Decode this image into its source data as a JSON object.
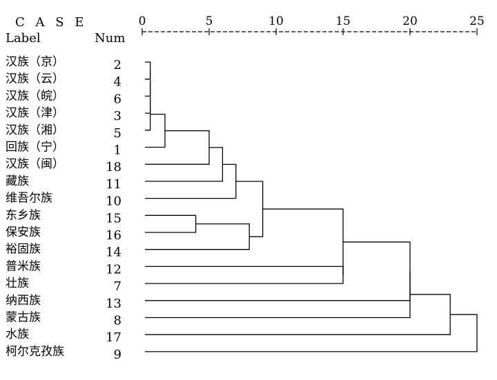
{
  "header": {
    "case": "C A S E",
    "label": "Label",
    "num": "Num"
  },
  "axis": {
    "min": 0,
    "max": 25,
    "ticks": [
      "0",
      "5",
      "10",
      "15",
      "20",
      "25"
    ]
  },
  "rows": [
    {
      "label": "汉族（京）",
      "num": "2"
    },
    {
      "label": "汉族（云）",
      "num": "4"
    },
    {
      "label": "汉族（皖）",
      "num": "6"
    },
    {
      "label": "汉族（津）",
      "num": "3"
    },
    {
      "label": "汉族（湘）",
      "num": "5"
    },
    {
      "label": "回族（宁）",
      "num": "1"
    },
    {
      "label": "汉族（闽）",
      "num": "18"
    },
    {
      "label": "藏族",
      "num": "11"
    },
    {
      "label": "维吾尔族",
      "num": "10"
    },
    {
      "label": "东乡族",
      "num": "15"
    },
    {
      "label": "保安族",
      "num": "16"
    },
    {
      "label": "裕固族",
      "num": "14"
    },
    {
      "label": "普米族",
      "num": "12"
    },
    {
      "label": "壮族",
      "num": "7"
    },
    {
      "label": "纳西族",
      "num": "13"
    },
    {
      "label": "蒙古族",
      "num": "8"
    },
    {
      "label": "水族",
      "num": "17"
    },
    {
      "label": "柯尔克孜族",
      "num": "9"
    }
  ],
  "merges": [
    {
      "a": "r0",
      "b": "r1",
      "d": 0.6
    },
    {
      "a": "m0",
      "b": "r2",
      "d": 0.6
    },
    {
      "a": "m1",
      "b": "r3",
      "d": 0.6
    },
    {
      "a": "m2",
      "b": "r4",
      "d": 0.6
    },
    {
      "a": "m3",
      "b": "r5",
      "d": 1.7
    },
    {
      "a": "m4",
      "b": "r6",
      "d": 5.0
    },
    {
      "a": "m5",
      "b": "r7",
      "d": 6.0
    },
    {
      "a": "m6",
      "b": "r8",
      "d": 7.0
    },
    {
      "a": "r9",
      "b": "r10",
      "d": 4.0
    },
    {
      "a": "m8",
      "b": "r11",
      "d": 8.0
    },
    {
      "a": "m7",
      "b": "m9",
      "d": 9.0
    },
    {
      "a": "r12",
      "b": "r13",
      "d": 15.0
    },
    {
      "a": "m10",
      "b": "m11",
      "d": 15.0
    },
    {
      "a": "m12",
      "b": "r14",
      "d": 20.0
    },
    {
      "a": "m13",
      "b": "r15",
      "d": 20.0
    },
    {
      "a": "m14",
      "b": "r16",
      "d": 23.0
    },
    {
      "a": "m15",
      "b": "r17",
      "d": 25.0
    }
  ]
}
